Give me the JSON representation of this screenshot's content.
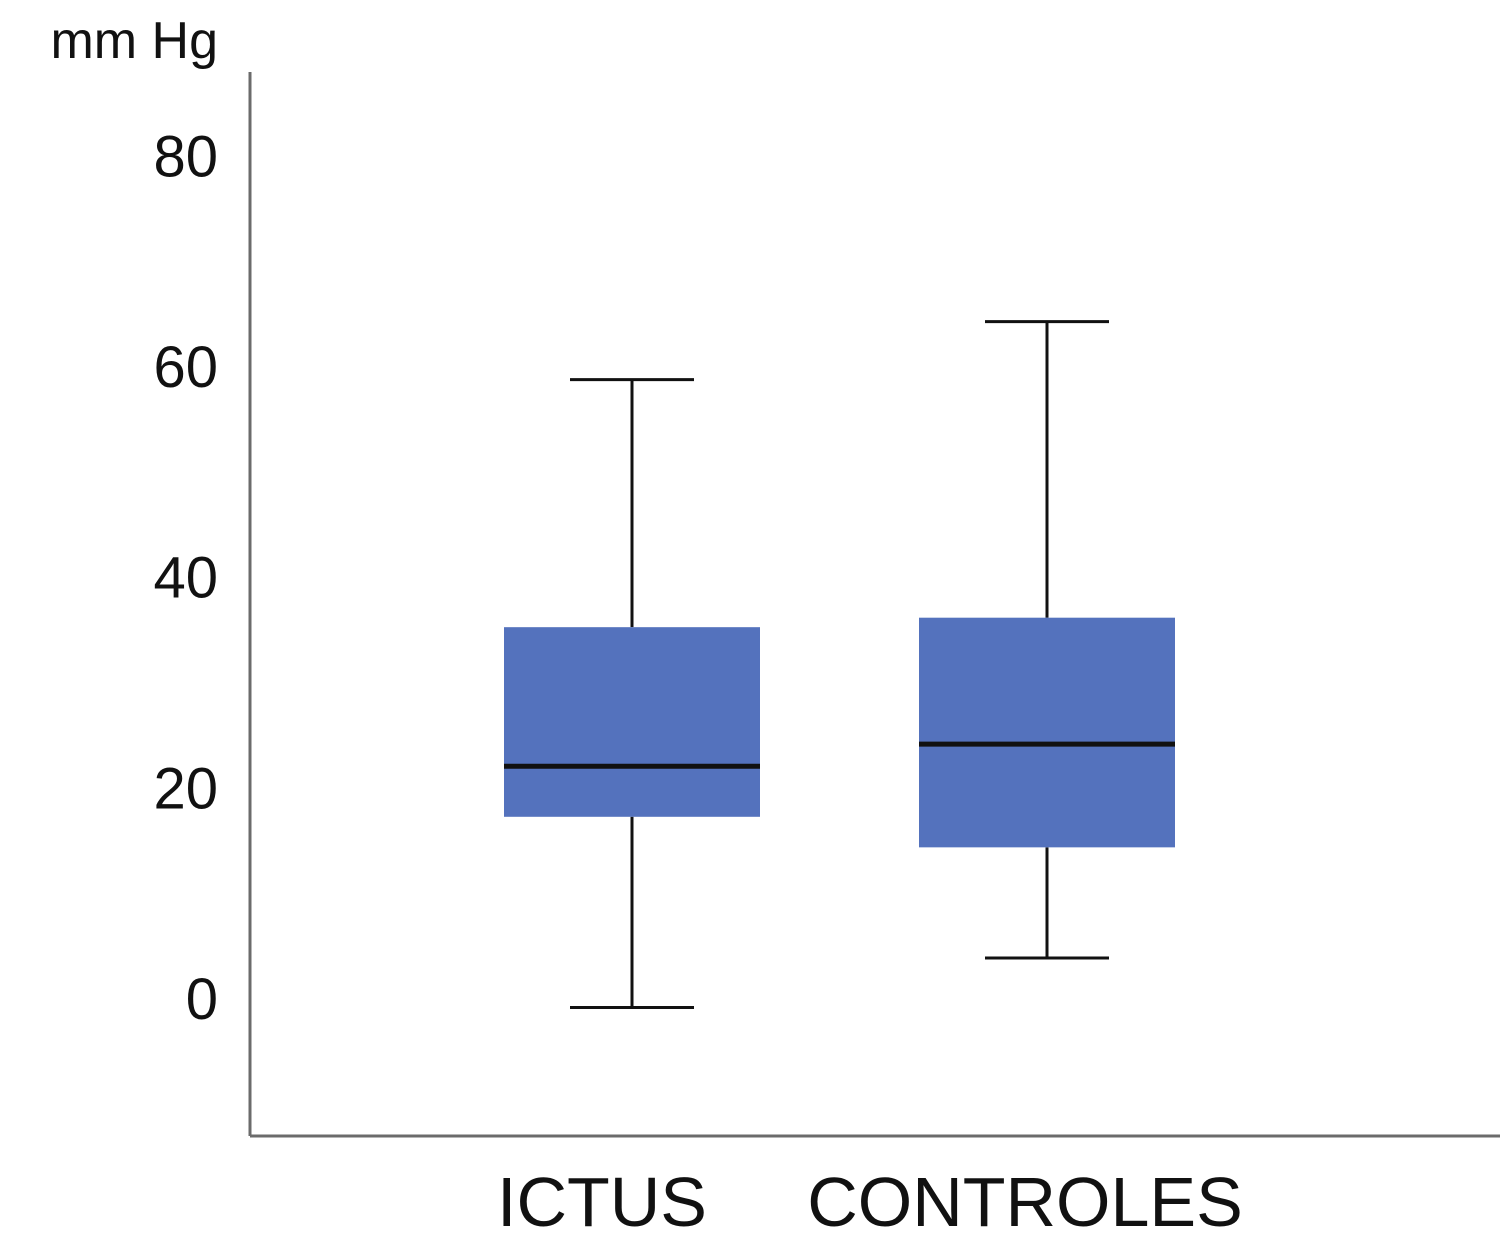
{
  "chart_data": {
    "type": "box",
    "ylabel": "mm Hg",
    "ylim": [
      -13,
      88
    ],
    "yticks": [
      0,
      20,
      40,
      60,
      80
    ],
    "categories": [
      "ICTUS",
      "CONTROLES"
    ],
    "boxes": [
      {
        "category": "ICTUS",
        "whisker_low": -0.8,
        "q1": 17.3,
        "median": 22.1,
        "q3": 35.3,
        "whisker_high": 58.8
      },
      {
        "category": "CONTROLES",
        "whisker_low": 3.9,
        "q1": 14.4,
        "median": 24.2,
        "q3": 36.2,
        "whisker_high": 64.3
      }
    ],
    "box_color": "#5472bd",
    "line_color": "#111111",
    "grid": false,
    "legend": "none"
  }
}
